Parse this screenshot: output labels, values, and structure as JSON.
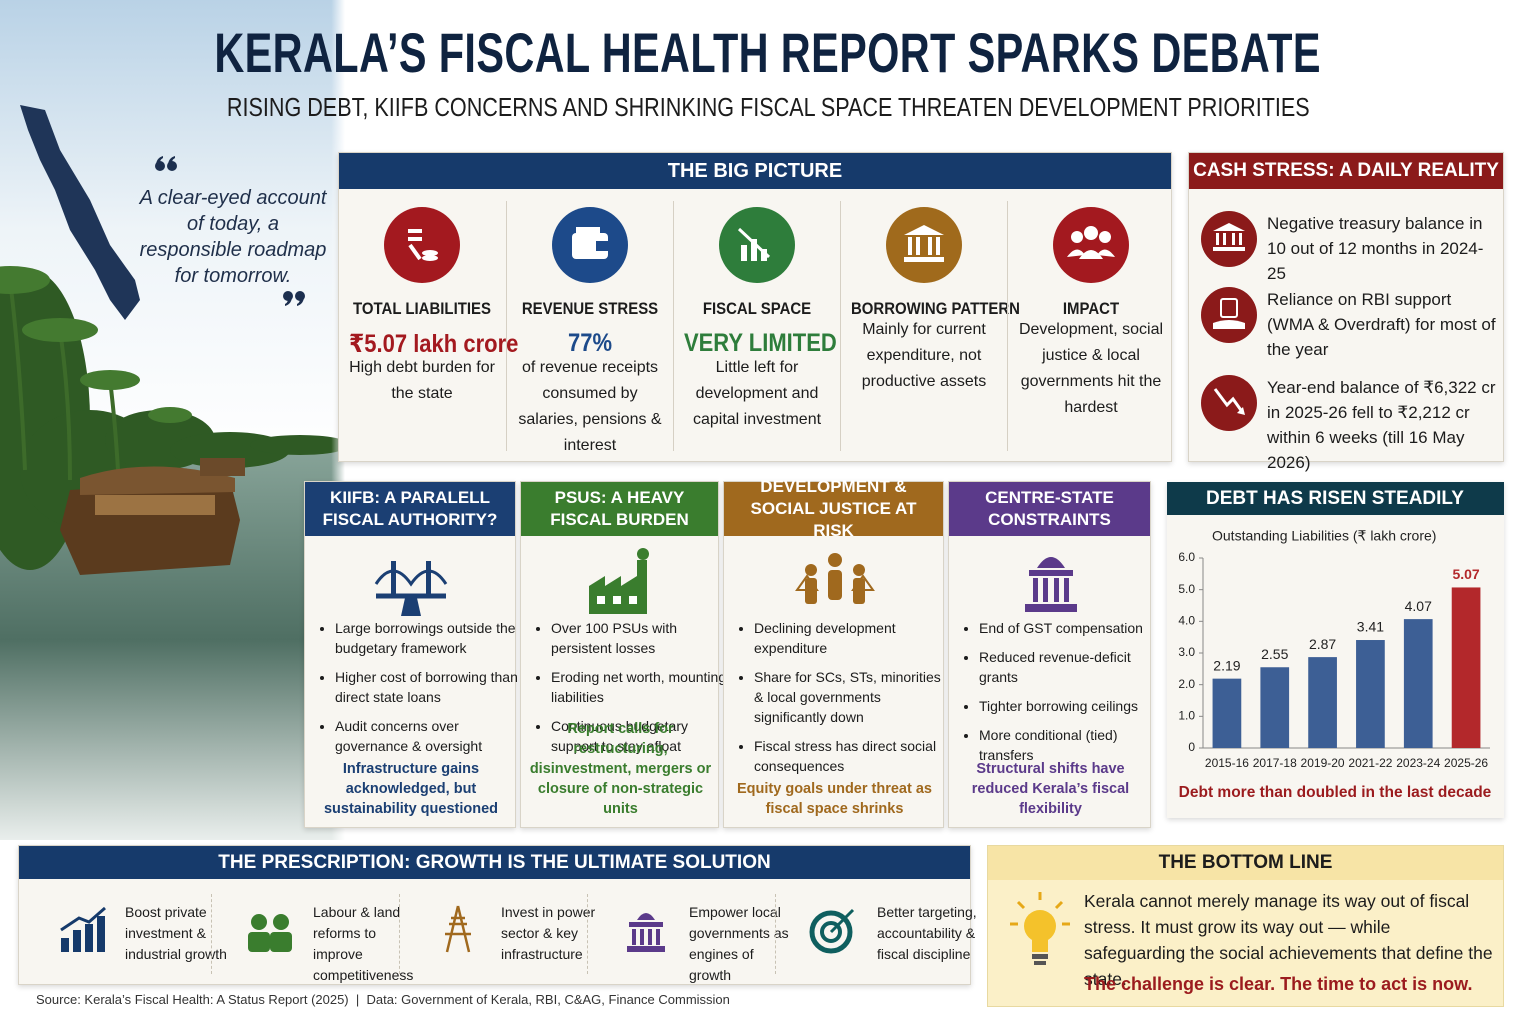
{
  "header": {
    "title": "KERALA’S FISCAL HEALTH REPORT SPARKS DEBATE",
    "subtitle": "RISING DEBT, KIIFB CONCERNS AND SHRINKING FISCAL SPACE THREATEN DEVELOPMENT PRIORITIES"
  },
  "quote": "A clear-eyed account of today, a responsible roadmap for tomorrow.",
  "big_picture": {
    "title": "THE BIG PICTURE",
    "items": [
      {
        "label": "TOTAL LIABILITIES",
        "value": "₹5.07 lakh crore",
        "description": "High debt burden for the state"
      },
      {
        "label": "REVENUE STRESS",
        "value": "77%",
        "description": "of revenue receipts consumed by salaries, pensions & interest"
      },
      {
        "label": "FISCAL SPACE",
        "value": "VERY LIMITED",
        "description": "Little left for development and capital investment"
      },
      {
        "label": "BORROWING PATTERN",
        "description": "Mainly for current expenditure, not productive assets"
      },
      {
        "label": "IMPACT",
        "description": "Development, social justice & local governments hit the hardest"
      }
    ]
  },
  "cash_stress": {
    "title": "CASH STRESS: A DAILY REALITY",
    "items": [
      "Negative treasury balance in 10 out of 12 months in 2024-25",
      "Reliance on RBI support (WMA & Overdraft) for most of the year",
      "Year-end balance of ₹6,322 cr in 2025-26 fell to ₹2,212 cr within 6 weeks (till 16 May 2026)"
    ]
  },
  "panels": [
    {
      "title": "KIIFB: A PARALELL FISCAL AUTHORITY?",
      "bullets": [
        "Large borrowings outside the budgetary framework",
        "Higher cost of borrowing than direct state loans",
        "Audit concerns over governance & oversight"
      ],
      "conclusion": "Infrastructure gains acknowledged, but sustainability questioned"
    },
    {
      "title": "PSUS: A HEAVY FISCAL BURDEN",
      "bullets": [
        "Over 100 PSUs with persistent losses",
        "Eroding net worth, mounting liabilities",
        "Continuous budgetary support to stay afloat"
      ],
      "conclusion": "Report calls for restructuring, disinvestment, mergers or closure of non-strategic units"
    },
    {
      "title": "DEVELOPMENT & SOCIAL JUSTICE AT RISK",
      "bullets": [
        "Declining development expenditure",
        "Share for SCs, STs, minorities & local governments significantly down",
        "Fiscal stress has direct social consequences"
      ],
      "conclusion": "Equity goals under threat as fiscal space shrinks"
    },
    {
      "title": "CENTRE-STATE CONSTRAINTS",
      "bullets": [
        "End of GST compensation",
        "Reduced revenue-deficit grants",
        "Tighter borrowing ceilings",
        "More conditional (tied) transfers"
      ],
      "conclusion": "Structural shifts have reduced Kerala’s fiscal flexibility"
    }
  ],
  "debt_chart": {
    "type": "bar",
    "title": "DEBT HAS RISEN STEADILY",
    "y_label": "Outstanding Liabilities (₹ lakh crore)",
    "categories": [
      "2015-16",
      "2017-18",
      "2019-20",
      "2021-22",
      "2023-24",
      "2025-26"
    ],
    "values": [
      2.19,
      2.55,
      2.87,
      3.41,
      4.07,
      5.07
    ],
    "colors": [
      "#3d5f95",
      "#3d5f95",
      "#3d5f95",
      "#3d5f95",
      "#3d5f95",
      "#b3282b"
    ],
    "ylim": [
      0,
      6
    ],
    "yticks": [
      0,
      {
        "value": 1,
        "label": "1.0"
      },
      {
        "value": 2,
        "label": "2.0"
      },
      {
        "value": 3,
        "label": "3.0"
      },
      {
        "value": 4,
        "label": "4.0"
      },
      {
        "value": 5,
        "label": "5.0"
      },
      {
        "value": 6,
        "label": "6.0"
      }
    ],
    "grid": false,
    "note": "Debt more than doubled in the last decade"
  },
  "prescription": {
    "title": "THE PRESCRIPTION: GROWTH IS THE ULTIMATE SOLUTION",
    "items": [
      "Boost private investment & industrial growth",
      "Labour & land reforms to improve competitiveness",
      "Invest in power sector & key infrastructure",
      "Empower local governments as engines of growth",
      "Better targeting, accountability & fiscal discipline"
    ]
  },
  "bottom_line": {
    "title": "THE BOTTOM LINE",
    "text": "Kerala cannot merely manage its way out of fiscal stress. It must grow its way out — while safeguarding the social achievements that define the state.",
    "call": "The challenge is clear. The time to act is now."
  },
  "source": "Source: Kerala’s Fiscal Health: A Status Report (2025)  |  Data: Government of Kerala, RBI, C&AG, Finance Commission"
}
